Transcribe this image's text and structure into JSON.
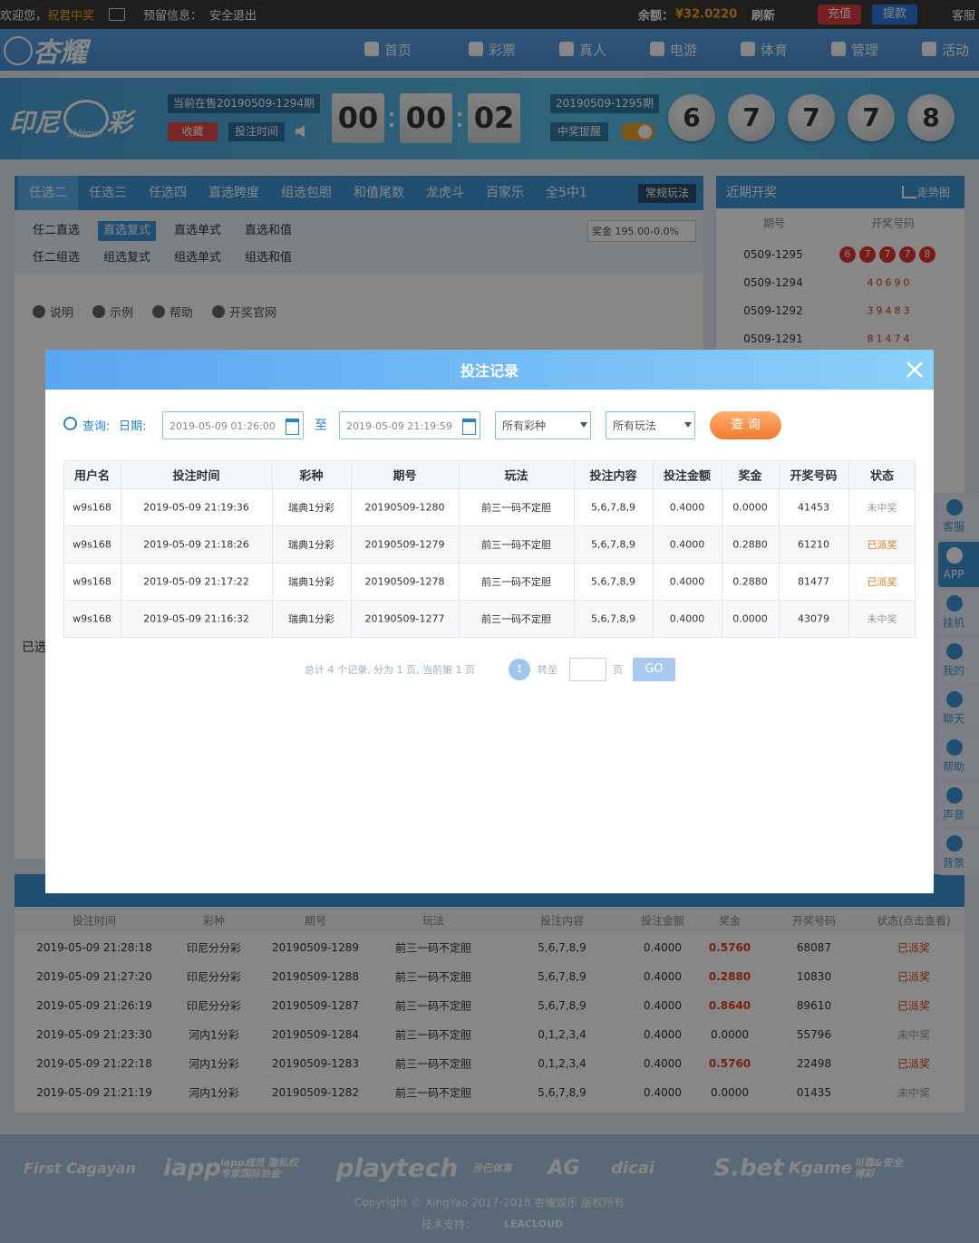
{
  "top_bar": {
    "welcome": "欢迎您，",
    "user": "祝君中奖",
    "reserved_info": "预留信息：",
    "logout": "安全退出",
    "balance_label": "余额：",
    "balance": "¥32.0220",
    "refresh": "刷新",
    "recharge": "充值",
    "withdraw": "提款",
    "service": "客服"
  },
  "nav": {
    "logo": "杏耀",
    "items": [
      "首页",
      "彩票",
      "真人",
      "电游",
      "体育",
      "管理",
      "活动"
    ]
  },
  "lottery": {
    "logo_main": "印尼",
    "logo_sub": "分分min",
    "logo_suffix": "彩",
    "current": "当前在售20190509-1294期",
    "favorite": "收藏",
    "bet_time": "投注时间",
    "countdown": [
      "00",
      "00",
      "02"
    ],
    "next_issue": "20190509-1295期",
    "win_alert": "中奖提醒",
    "balls": [
      "6",
      "7",
      "7",
      "7",
      "8"
    ]
  },
  "play": {
    "tabs": [
      "任选二",
      "任选三",
      "任选四",
      "直选跨度",
      "组选包胆",
      "和值尾数",
      "龙虎斗",
      "百家乐",
      "全5中1"
    ],
    "mode": "常规玩法",
    "sub_rows": [
      [
        "任二直选",
        "直选复式",
        "直选单式",
        "直选和值"
      ],
      [
        "任二组选",
        "组选复式",
        "组选单式",
        "组选和值"
      ]
    ],
    "prize": "奖金 195.00-0.0%",
    "links": [
      "说明",
      "示例",
      "帮助",
      "开奖官网"
    ],
    "selected": "已选"
  },
  "recent": {
    "title": "近期开奖",
    "trend": "走势图",
    "headers": [
      "期号",
      "开奖号码"
    ],
    "rows": [
      {
        "issue": "0509-1295",
        "numbers": [
          "6",
          "7",
          "7",
          "7",
          "8"
        ]
      },
      {
        "issue": "0509-1294",
        "numbers": [
          "4",
          "0",
          "6",
          "9",
          "0"
        ]
      },
      {
        "issue": "0509-1292",
        "numbers": [
          "3",
          "9",
          "4",
          "8",
          "3"
        ]
      },
      {
        "issue": "0509-1291",
        "numbers": [
          "8",
          "1",
          "4",
          "7",
          "4"
        ]
      }
    ]
  },
  "bet_history": {
    "headers": [
      "投注时间",
      "彩种",
      "期号",
      "玩法",
      "投注内容",
      "投注金额",
      "奖金",
      "开奖号码",
      "状态(点击查看)"
    ],
    "rows": [
      [
        "2019-05-09 21:28:18",
        "印尼分分彩",
        "20190509-1289",
        "前三一码不定胆",
        "5,6,7,8,9",
        "0.4000",
        "0.5760",
        "68087",
        "已派奖"
      ],
      [
        "2019-05-09 21:27:20",
        "印尼分分彩",
        "20190509-1288",
        "前三一码不定胆",
        "5,6,7,8,9",
        "0.4000",
        "0.2880",
        "10830",
        "已派奖"
      ],
      [
        "2019-05-09 21:26:19",
        "印尼分分彩",
        "20190509-1287",
        "前三一码不定胆",
        "5,6,7,8,9",
        "0.4000",
        "0.8640",
        "89610",
        "已派奖"
      ],
      [
        "2019-05-09 21:23:30",
        "河内1分彩",
        "20190509-1284",
        "前三一码不定胆",
        "0,1,2,3,4",
        "0.4000",
        "0.0000",
        "55796",
        "未中奖"
      ],
      [
        "2019-05-09 21:22:18",
        "河内1分彩",
        "20190509-1283",
        "前三一码不定胆",
        "0,1,2,3,4",
        "0.4000",
        "0.5760",
        "22498",
        "已派奖"
      ],
      [
        "2019-05-09 21:21:19",
        "河内1分彩",
        "20190509-1282",
        "前三一码不定胆",
        "5,6,7,8,9",
        "0.4000",
        "0.0000",
        "01435",
        "未中奖"
      ]
    ]
  },
  "side_menu": [
    "客服",
    "APP",
    "挂机",
    "我的",
    "聊天",
    "帮助",
    "声音",
    "背景"
  ],
  "footer": {
    "partners": [
      "First Cagayan",
      "iapp",
      "iapp成员 隐私权专家国际协会",
      "playtech",
      "沙巴体育",
      "AG",
      "dicai",
      "S.bet",
      "Kgame",
      "可靠&安全 博彩"
    ],
    "copyright": "Copyright © XingYao 2017-2018 杏耀娱乐 版权所有",
    "tech_support": "技术支持：",
    "tech_brand": "LEACLOUD"
  },
  "modal": {
    "title": "投注记录",
    "query_label": "查询:",
    "date_label": "日期:",
    "date_from": "2019-05-09 01:26:00",
    "to": "至",
    "date_to": "2019-05-09 21:19:59",
    "lottery_select": "所有彩种",
    "play_select": "所有玩法",
    "query_button": "查 询",
    "table": {
      "headers": [
        "用户名",
        "投注时间",
        "彩种",
        "期号",
        "玩法",
        "投注内容",
        "投注金额",
        "奖金",
        "开奖号码",
        "状态"
      ],
      "rows": [
        [
          "w9s168",
          "2019-05-09 21:19:36",
          "瑞典1分彩",
          "20190509-1280",
          "前三一码不定胆",
          "5,6,7,8,9",
          "0.4000",
          "0.0000",
          "41453",
          "未中奖"
        ],
        [
          "w9s168",
          "2019-05-09 21:18:26",
          "瑞典1分彩",
          "20190509-1279",
          "前三一码不定胆",
          "5,6,7,8,9",
          "0.4000",
          "0.2880",
          "61210",
          "已派奖"
        ],
        [
          "w9s168",
          "2019-05-09 21:17:22",
          "瑞典1分彩",
          "20190509-1278",
          "前三一码不定胆",
          "5,6,7,8,9",
          "0.4000",
          "0.2880",
          "81477",
          "已派奖"
        ],
        [
          "w9s168",
          "2019-05-09 21:16:32",
          "瑞典1分彩",
          "20190509-1277",
          "前三一码不定胆",
          "5,6,7,8,9",
          "0.4000",
          "0.0000",
          "43079",
          "未中奖"
        ]
      ]
    },
    "pagination": {
      "summary": "总计 4 个记录, 分为 1 页, 当前第 1 页",
      "page": "1",
      "goto": "转至",
      "page_unit": "页",
      "go": "GO"
    }
  }
}
